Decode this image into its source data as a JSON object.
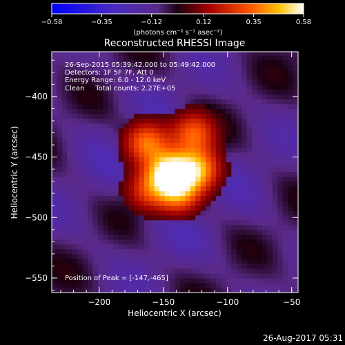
{
  "chart_data": {
    "type": "heatmap",
    "title": "Reconstructed RHESSI Image",
    "xlabel": "Heliocentric X (arcsec)",
    "ylabel": "Heliocentric Y (arcsec)",
    "xlim": [
      -237,
      -45
    ],
    "ylim": [
      -562,
      -363
    ],
    "xticks": [
      -200,
      -150,
      -100,
      -50
    ],
    "yticks": [
      -400,
      -450,
      -500,
      -550
    ],
    "colorbar": {
      "ticks": [
        -0.58,
        -0.35,
        -0.12,
        0.12,
        0.35,
        0.58
      ],
      "tick_labels": [
        "−0.58",
        "−0.35",
        "−0.12",
        "0.12",
        "0.35",
        "0.58"
      ],
      "unit_label": "(photons cm⁻² s⁻¹ asec⁻²)",
      "range": [
        -0.58,
        0.58
      ]
    },
    "info_lines": [
      "26-Sep-2015 05:39:42.000 to 05:49:42.000",
      "Detectors: 1F 5F 7F, Att 0",
      "Energy Range: 6.0 - 12.0 keV",
      "Clean     Total counts: 2.27E+05"
    ],
    "peak_label": "Position of Peak = [-147,-465]",
    "peak": [
      -147,
      -465
    ],
    "sources": [
      {
        "x": -147,
        "y": -465,
        "value": 0.58
      },
      {
        "x": -165,
        "y": -440,
        "value": 0.35
      },
      {
        "x": -128,
        "y": -432,
        "value": 0.32
      },
      {
        "x": -140,
        "y": -482,
        "value": 0.33
      },
      {
        "x": -165,
        "y": -480,
        "value": 0.22
      },
      {
        "x": -125,
        "y": -462,
        "value": 0.4
      }
    ]
  },
  "footer": {
    "timestamp": "26-Aug-2017 05:31"
  }
}
